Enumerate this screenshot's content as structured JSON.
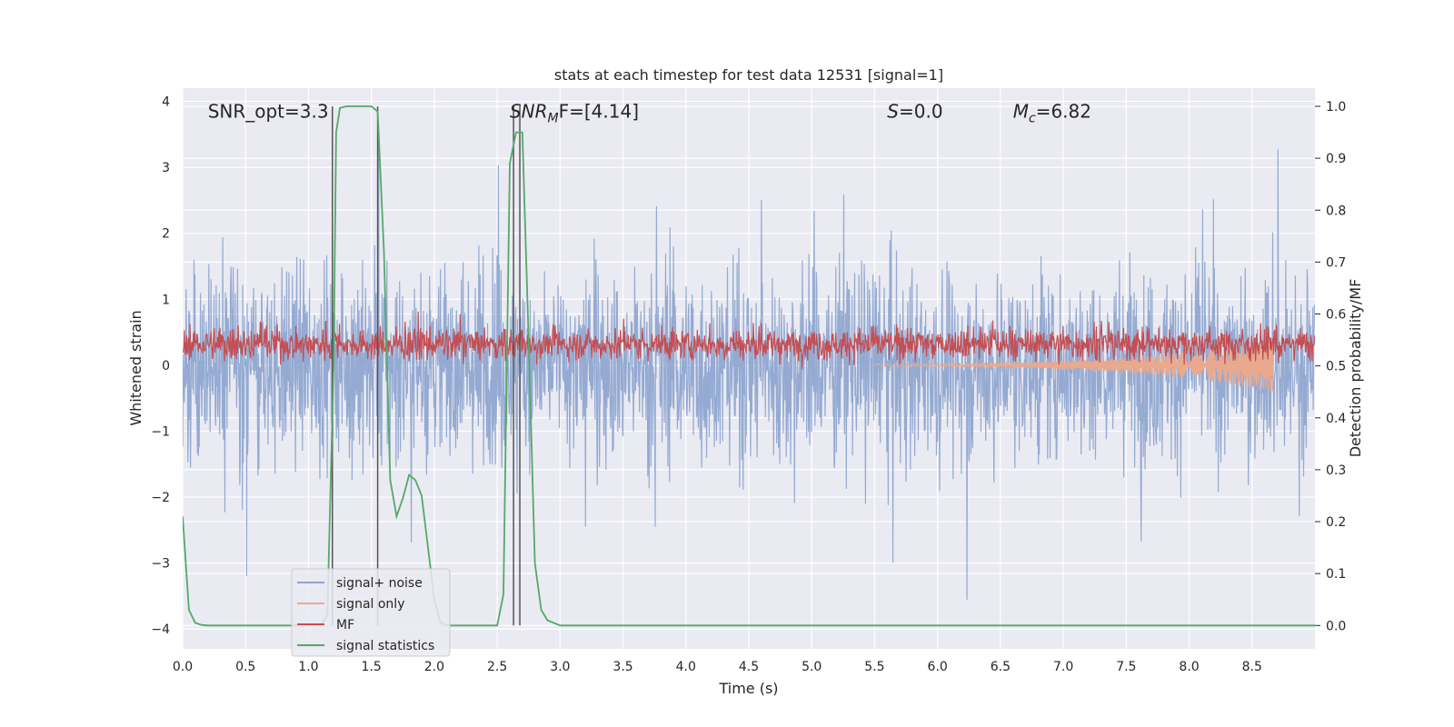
{
  "chart_data": {
    "type": "line",
    "title": "stats at each timestep for test data 12531 [signal=1]",
    "xlabel": "Time (s)",
    "ylabel_left": "Whitened strain",
    "ylabel_right": "Detection probability/MF",
    "xlim": [
      0.0,
      9.0
    ],
    "ylim_left": [
      -4.3,
      4.2
    ],
    "ylim_right": [
      -0.045,
      1.035
    ],
    "x_ticks": [
      "0.0",
      "0.5",
      "1.0",
      "1.5",
      "2.0",
      "2.5",
      "3.0",
      "3.5",
      "4.0",
      "4.5",
      "5.0",
      "5.5",
      "6.0",
      "6.5",
      "7.0",
      "7.5",
      "8.0",
      "8.5"
    ],
    "y_ticks_left": [
      "−4",
      "−3",
      "−2",
      "−1",
      "0",
      "1",
      "2",
      "3",
      "4"
    ],
    "y_ticks_right": [
      "0.0",
      "0.1",
      "0.2",
      "0.3",
      "0.4",
      "0.5",
      "0.6",
      "0.7",
      "0.8",
      "0.9",
      "1.0"
    ],
    "grid": true,
    "annotations": [
      {
        "text": "SNR_opt=3.3",
        "x": 0.2,
        "y": 3.85
      },
      {
        "text": "SNR_MF=[4.14]",
        "main": "SNR",
        "sub": "M",
        "tail": "F=[4.14]",
        "x": 2.6,
        "y": 3.85
      },
      {
        "text": "S=0.0",
        "main": "S",
        "tail": "=0.0",
        "x": 5.6,
        "y": 3.85
      },
      {
        "text": "M_c=6.82",
        "main": "M",
        "sub": "c",
        "tail": "=6.82",
        "x": 6.6,
        "y": 3.85
      }
    ],
    "legend": {
      "placement": "lower-left",
      "entries": [
        {
          "label": "signal+ noise",
          "color": "#8fa6d0"
        },
        {
          "label": "signal only",
          "color": "#e8a98f"
        },
        {
          "label": "MF",
          "color": "#c44e52"
        },
        {
          "label": "signal statistics",
          "color": "#55a868"
        }
      ]
    },
    "series": [
      {
        "name": "signal+ noise",
        "axis": "left",
        "color": "#8fa6d0",
        "style": "dense noise band",
        "x_range": [
          0.0,
          9.0
        ],
        "typical_range": [
          -1.9,
          1.6
        ],
        "extreme_range": [
          -3.6,
          3.8
        ]
      },
      {
        "name": "signal only",
        "axis": "left",
        "color": "#e8a98f",
        "style": "chirp",
        "x_range": [
          5.5,
          8.67
        ],
        "amplitude_start": 0.02,
        "amplitude_end": 0.4
      },
      {
        "name": "MF",
        "axis": "left",
        "color": "#c44e52",
        "style": "dense band",
        "x_range": [
          0.0,
          9.0
        ],
        "typical_range": [
          0.05,
          0.6
        ],
        "extreme_range": [
          -0.1,
          1.0
        ]
      },
      {
        "name": "signal statistics",
        "axis": "right",
        "color": "#55a868",
        "x": [
          0.0,
          0.05,
          0.1,
          0.15,
          0.2,
          0.3,
          0.5,
          1.0,
          1.1,
          1.15,
          1.2,
          1.22,
          1.25,
          1.3,
          1.35,
          1.5,
          1.55,
          1.6,
          1.65,
          1.7,
          1.75,
          1.8,
          1.85,
          1.9,
          1.95,
          2.0,
          2.05,
          2.1,
          2.15,
          2.2,
          2.3,
          2.4,
          2.5,
          2.55,
          2.6,
          2.65,
          2.7,
          2.75,
          2.8,
          2.85,
          2.9,
          2.95,
          3.0,
          3.05,
          3.1,
          3.5,
          9.0
        ],
        "y": [
          0.21,
          0.03,
          0.005,
          0.001,
          0.0,
          0.0,
          0.0,
          0.0,
          0.0,
          0.02,
          0.5,
          0.95,
          0.997,
          1.0,
          1.0,
          1.0,
          0.99,
          0.72,
          0.28,
          0.21,
          0.245,
          0.29,
          0.28,
          0.25,
          0.15,
          0.05,
          0.005,
          0.0,
          0.0,
          0.0,
          0.0,
          0.0,
          0.0,
          0.06,
          0.89,
          0.95,
          0.95,
          0.55,
          0.12,
          0.03,
          0.01,
          0.005,
          0.0,
          0.0,
          0.0,
          0.0,
          0.0
        ]
      }
    ],
    "vertical_markers": [
      1.19,
      1.55,
      2.63,
      2.68
    ]
  }
}
